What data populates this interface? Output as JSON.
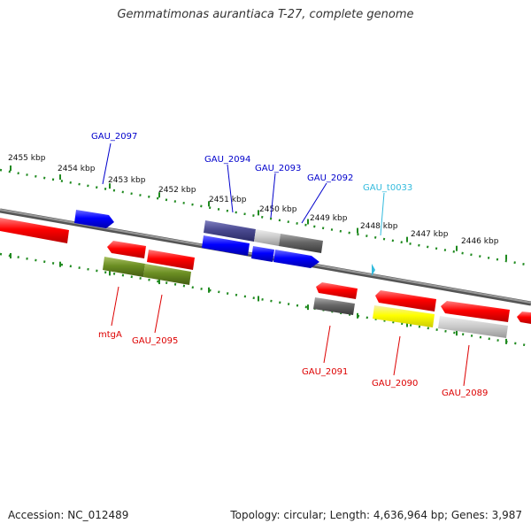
{
  "title": "Gemmatimonas aurantiaca T-27, complete genome",
  "footer": {
    "accession": "Accession: NC_012489",
    "topology": "Topology: circular; Length: 4,636,964 bp; Genes: 3,987"
  },
  "colors": {
    "backbone": "#8a8a8a",
    "ruler": "#1f8a1f",
    "gene_red": "#ff0000",
    "gene_blue": "#0000ff",
    "gene_teal": "#33bbdd"
  },
  "ruler": {
    "labels": [
      "2455 kbp",
      "2454 kbp",
      "2453 kbp",
      "2452 kbp",
      "2451 kbp",
      "2450 kbp",
      "2449 kbp",
      "2448 kbp",
      "2447 kbp",
      "2446 kbp"
    ]
  },
  "gene_labels": [
    {
      "text": "GAU_2097",
      "color": "blue"
    },
    {
      "text": "GAU_2094",
      "color": "blue"
    },
    {
      "text": "GAU_2093",
      "color": "blue"
    },
    {
      "text": "GAU_2092",
      "color": "blue"
    },
    {
      "text": "GAU_t0033",
      "color": "teal"
    },
    {
      "text": "mtgA",
      "color": "red"
    },
    {
      "text": "GAU_2095",
      "color": "red"
    },
    {
      "text": "GAU_2091",
      "color": "red"
    },
    {
      "text": "GAU_2090",
      "color": "red"
    },
    {
      "text": "GAU_2089",
      "color": "red"
    }
  ]
}
